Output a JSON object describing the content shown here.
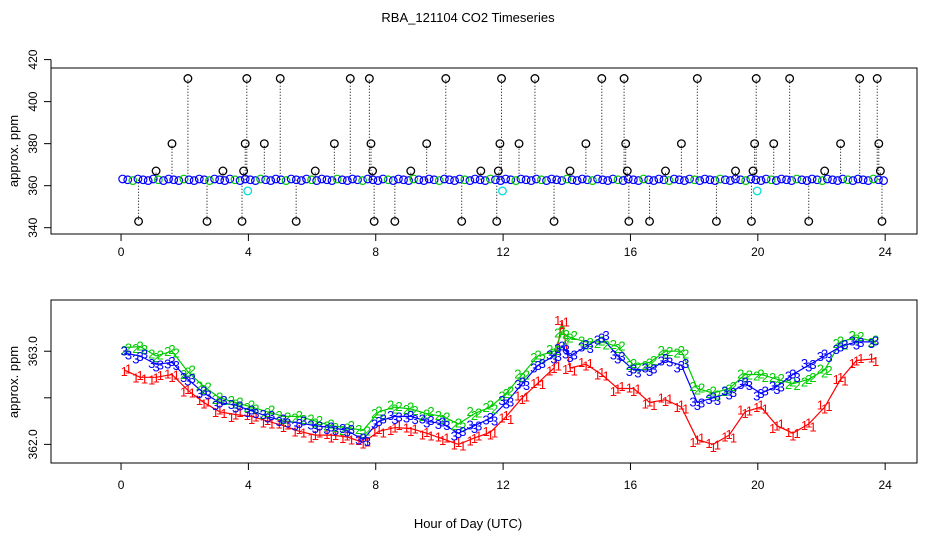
{
  "figure": {
    "title": "RBA_121104  CO2 Timeseries",
    "xlabel": "Hour of Day (UTC)"
  },
  "chart_data": [
    {
      "type": "scatter",
      "panel": "top",
      "ylabel": "approx. ppm",
      "xlim": [
        -2.2,
        25.0
      ],
      "ylim": [
        337,
        416
      ],
      "xticks": [
        0,
        4,
        8,
        12,
        16,
        20,
        24
      ],
      "yticks": [
        340,
        360,
        380,
        400,
        420
      ],
      "legend": "none",
      "base_series": {
        "name": "CO2 (points)",
        "x_start": 0.05,
        "x_end": 23.95,
        "y_level": 362.8,
        "blue": "#0000ff",
        "green": "#00cc00"
      },
      "spikes": [
        {
          "x": 0.55,
          "y": 343
        },
        {
          "x": 1.1,
          "y": 367
        },
        {
          "x": 1.6,
          "y": 380
        },
        {
          "x": 2.1,
          "y": 411
        },
        {
          "x": 2.7,
          "y": 343
        },
        {
          "x": 3.2,
          "y": 367
        },
        {
          "x": 3.8,
          "y": 343
        },
        {
          "x": 3.85,
          "y": 367
        },
        {
          "x": 3.9,
          "y": 380
        },
        {
          "x": 3.95,
          "y": 411
        },
        {
          "x": 4.5,
          "y": 380
        },
        {
          "x": 5.0,
          "y": 411
        },
        {
          "x": 5.5,
          "y": 343
        },
        {
          "x": 6.1,
          "y": 367
        },
        {
          "x": 6.7,
          "y": 380
        },
        {
          "x": 7.2,
          "y": 411
        },
        {
          "x": 7.8,
          "y": 411
        },
        {
          "x": 7.85,
          "y": 380
        },
        {
          "x": 7.9,
          "y": 367
        },
        {
          "x": 7.95,
          "y": 343
        },
        {
          "x": 8.6,
          "y": 343
        },
        {
          "x": 9.1,
          "y": 367
        },
        {
          "x": 9.6,
          "y": 380
        },
        {
          "x": 10.2,
          "y": 411
        },
        {
          "x": 10.7,
          "y": 343
        },
        {
          "x": 11.3,
          "y": 367
        },
        {
          "x": 11.8,
          "y": 343
        },
        {
          "x": 11.85,
          "y": 367
        },
        {
          "x": 11.9,
          "y": 380
        },
        {
          "x": 11.95,
          "y": 411
        },
        {
          "x": 12.5,
          "y": 380
        },
        {
          "x": 13.0,
          "y": 411
        },
        {
          "x": 13.6,
          "y": 343
        },
        {
          "x": 14.1,
          "y": 367
        },
        {
          "x": 14.6,
          "y": 380
        },
        {
          "x": 15.1,
          "y": 411
        },
        {
          "x": 15.8,
          "y": 411
        },
        {
          "x": 15.85,
          "y": 380
        },
        {
          "x": 15.9,
          "y": 367
        },
        {
          "x": 15.95,
          "y": 343
        },
        {
          "x": 16.6,
          "y": 343
        },
        {
          "x": 17.1,
          "y": 367
        },
        {
          "x": 17.6,
          "y": 380
        },
        {
          "x": 18.1,
          "y": 411
        },
        {
          "x": 18.7,
          "y": 343
        },
        {
          "x": 19.3,
          "y": 367
        },
        {
          "x": 19.8,
          "y": 343
        },
        {
          "x": 19.85,
          "y": 367
        },
        {
          "x": 19.9,
          "y": 380
        },
        {
          "x": 19.95,
          "y": 411
        },
        {
          "x": 20.5,
          "y": 380
        },
        {
          "x": 21.0,
          "y": 411
        },
        {
          "x": 21.6,
          "y": 343
        },
        {
          "x": 22.1,
          "y": 367
        },
        {
          "x": 22.6,
          "y": 380
        },
        {
          "x": 23.2,
          "y": 411
        },
        {
          "x": 23.75,
          "y": 411
        },
        {
          "x": 23.8,
          "y": 380
        },
        {
          "x": 23.85,
          "y": 367
        },
        {
          "x": 23.9,
          "y": 343
        }
      ],
      "cyan_points": [
        {
          "x": 3.98,
          "y": 357.5
        },
        {
          "x": 11.98,
          "y": 357.5
        },
        {
          "x": 19.98,
          "y": 357.5
        }
      ],
      "colors": {
        "spike_marker": "#000000",
        "cyan_marker": "#00dddd"
      }
    },
    {
      "type": "line",
      "panel": "bottom",
      "ylabel": "approx. ppm",
      "xlim": [
        -2.2,
        25.0
      ],
      "ylim": [
        361.8,
        363.55
      ],
      "xticks": [
        0,
        4,
        8,
        12,
        16,
        20,
        24
      ],
      "yticks": [
        362.0,
        362.5,
        363.0
      ],
      "ytick_labels": [
        "362.0",
        "",
        "363.0"
      ],
      "legend": "none",
      "x": [
        0.1,
        0.6,
        1.1,
        1.6,
        2.1,
        2.6,
        3.1,
        3.6,
        4.1,
        4.6,
        5.1,
        5.6,
        6.1,
        6.6,
        7.1,
        7.6,
        8.1,
        8.6,
        9.1,
        9.6,
        10.1,
        10.6,
        11.1,
        11.6,
        12.1,
        12.6,
        13.1,
        13.6,
        13.85,
        14.1,
        14.6,
        15.1,
        15.6,
        16.1,
        16.6,
        17.1,
        17.6,
        18.1,
        18.6,
        19.1,
        19.6,
        20.1,
        20.6,
        21.1,
        21.6,
        22.1,
        22.6,
        23.1,
        23.7
      ],
      "series": [
        {
          "name": "1",
          "symbol": "1",
          "color": "#ff0000",
          "values": [
            362.8,
            362.72,
            362.72,
            362.75,
            362.58,
            362.45,
            362.35,
            362.32,
            362.3,
            362.25,
            362.2,
            362.14,
            362.1,
            362.1,
            362.08,
            362.02,
            362.14,
            362.18,
            362.17,
            362.12,
            362.06,
            362.0,
            362.07,
            362.13,
            362.3,
            362.5,
            362.66,
            362.82,
            363.32,
            362.82,
            362.86,
            362.75,
            362.6,
            362.6,
            362.45,
            362.48,
            362.4,
            362.05,
            362.0,
            362.1,
            362.35,
            362.4,
            362.2,
            362.12,
            362.22,
            362.4,
            362.7,
            362.9,
            362.92
          ]
        },
        {
          "name": "2",
          "symbol": "2",
          "color": "#00cc00",
          "values": [
            363.04,
            363.05,
            362.95,
            363.0,
            362.78,
            362.62,
            362.5,
            362.45,
            362.4,
            362.35,
            362.3,
            362.3,
            362.25,
            362.2,
            362.18,
            362.15,
            362.35,
            362.4,
            362.38,
            362.33,
            362.3,
            362.22,
            362.33,
            362.4,
            362.55,
            362.75,
            362.95,
            363.0,
            363.2,
            363.15,
            363.1,
            363.1,
            363.05,
            362.85,
            362.88,
            363.0,
            363.0,
            362.6,
            362.55,
            362.6,
            362.75,
            362.75,
            362.7,
            362.65,
            362.7,
            362.8,
            363.1,
            363.15,
            363.1
          ]
        },
        {
          "name": "3",
          "symbol": "3",
          "color": "#0000ff",
          "values": [
            362.98,
            362.95,
            362.86,
            362.88,
            362.7,
            362.55,
            362.45,
            362.42,
            362.36,
            362.3,
            362.25,
            362.23,
            362.2,
            362.18,
            362.15,
            362.05,
            362.25,
            362.3,
            362.3,
            362.25,
            362.22,
            362.12,
            362.2,
            362.28,
            362.45,
            362.65,
            362.85,
            362.95,
            363.05,
            362.95,
            363.05,
            363.15,
            362.95,
            362.8,
            362.8,
            362.9,
            362.85,
            362.45,
            362.5,
            362.55,
            362.65,
            362.55,
            362.62,
            362.75,
            362.85,
            362.95,
            363.05,
            363.1,
            363.1
          ]
        }
      ]
    }
  ]
}
